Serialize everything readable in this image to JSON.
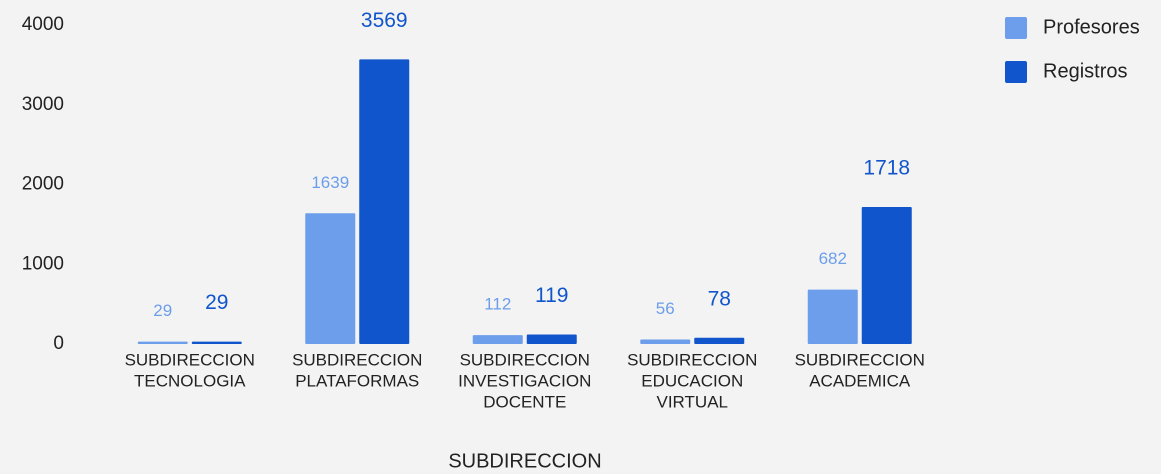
{
  "chart_data": {
    "type": "bar",
    "x_label": "SUBDIRECCION",
    "categories": [
      [
        "SUBDIRECCION",
        "TECNOLOGIA"
      ],
      [
        "SUBDIRECCION",
        "PLATAFORMAS"
      ],
      [
        "SUBDIRECCION",
        "INVESTIGACION",
        "DOCENTE"
      ],
      [
        "SUBDIRECCION",
        "EDUCACION",
        "VIRTUAL"
      ],
      [
        "SUBDIRECCION",
        "ACADEMICA"
      ]
    ],
    "series": [
      {
        "name": "Profesores",
        "color": "#6d9eeb",
        "values": [
          29,
          1639,
          112,
          56,
          682
        ]
      },
      {
        "name": "Registros",
        "color": "#1155cc",
        "values": [
          29,
          3569,
          119,
          78,
          1718
        ]
      }
    ],
    "ylim": [
      0,
      4000
    ],
    "yticks": [
      0,
      1000,
      2000,
      3000,
      4000
    ],
    "grid": false,
    "legend": "top-right"
  }
}
